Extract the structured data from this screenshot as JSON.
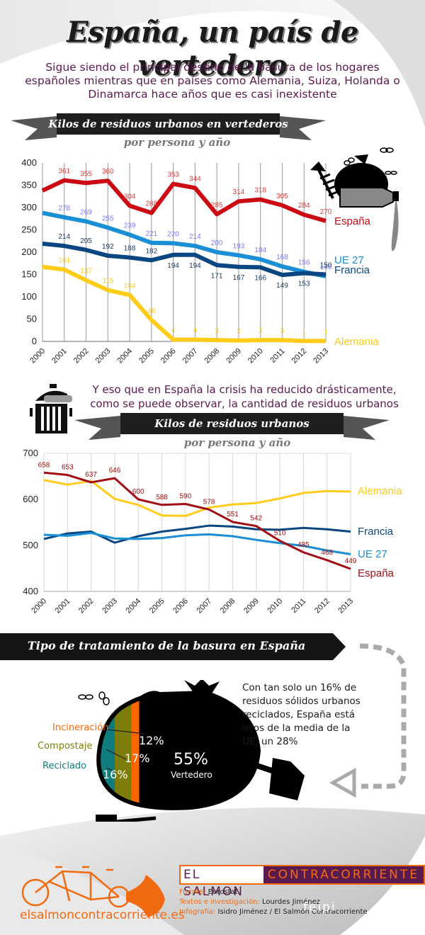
{
  "header": {
    "title": "España, un país de vertedero",
    "subtitle": "Sigue siendo el principal destino de la basura de los hogares españoles mientras que en países como Alemania, Suiza, Holanda o Dinamarca hace años que es casi inexistente"
  },
  "section1": {
    "ribbon_title": "Kilos de residuos urbanos en vertederos",
    "ribbon_sub": "por persona y año"
  },
  "section2": {
    "intro": "Y eso que en España la crisis ha reducido drásticamente, como se puede observar, la cantidad de residuos urbanos",
    "ribbon_title": "Kilos de residuos urbanos",
    "ribbon_sub": "por persona y año"
  },
  "section3": {
    "ribbon_title": "Tipo de tratamiento de la basura en España",
    "callout": "Con tan solo un 16% de residuos sólidos urbanos reciclados, España está lejos de la media de la UE, un 28%"
  },
  "colors": {
    "espana1": "#cc0a14",
    "espana2": "#a10f14",
    "francia": "#0a4682",
    "ue27": "#1a8fd6",
    "alemania": "#ffcc1a",
    "purple": "#5b1a4e",
    "orange": "#f26a10"
  },
  "chart_data": [
    {
      "type": "line",
      "title": "Kilos de residuos urbanos en vertederos por persona y año",
      "xlabel": "",
      "ylabel": "",
      "ylim": [
        0,
        400
      ],
      "yticks": [
        0,
        50,
        100,
        150,
        200,
        250,
        300,
        350,
        400
      ],
      "grid": "vertical",
      "legend": "right",
      "x": [
        "2000",
        "2001",
        "2002",
        "2003",
        "2004",
        "2005",
        "2006",
        "2007",
        "2008",
        "2009",
        "2010",
        "2011",
        "2012",
        "2013"
      ],
      "series": [
        {
          "name": "España",
          "color": "#cc0a14",
          "values": [
            338,
            361,
            355,
            360,
            304,
            288,
            353,
            344,
            285,
            314,
            318,
            305,
            284,
            270
          ],
          "labels": [
            null,
            361,
            355,
            360,
            304,
            288,
            353,
            344,
            285,
            314,
            318,
            305,
            284,
            270
          ]
        },
        {
          "name": "UE 27",
          "color": "#1a8fd6",
          "values": [
            288,
            278,
            269,
            255,
            239,
            221,
            220,
            214,
            200,
            193,
            184,
            168,
            156,
            146
          ],
          "labels": [
            null,
            278,
            269,
            255,
            239,
            221,
            220,
            214,
            200,
            193,
            184,
            168,
            156,
            146
          ]
        },
        {
          "name": "Francia",
          "color": "#0a4682",
          "values": [
            219,
            214,
            205,
            192,
            188,
            182,
            194,
            194,
            171,
            167,
            166,
            149,
            153,
            150
          ],
          "labels": [
            null,
            214,
            205,
            192,
            188,
            182,
            194,
            194,
            171,
            167,
            166,
            149,
            153,
            150
          ]
        },
        {
          "name": "Alemania",
          "color": "#ffcc1a",
          "values": [
            167,
            161,
            137,
            115,
            104,
            48,
            4,
            4,
            3,
            2,
            3,
            3,
            1,
            1
          ],
          "labels": [
            null,
            161,
            137,
            115,
            104,
            48,
            4,
            4,
            3,
            2,
            3,
            3,
            1,
            1
          ]
        }
      ]
    },
    {
      "type": "line",
      "title": "Kilos de residuos urbanos por persona y año",
      "xlabel": "",
      "ylabel": "",
      "ylim": [
        400,
        700
      ],
      "yticks": [
        400,
        500,
        600,
        700
      ],
      "grid": "vertical",
      "legend": "right",
      "x": [
        "2000",
        "2001",
        "2002",
        "2003",
        "2004",
        "2005",
        "2006",
        "2007",
        "2008",
        "2009",
        "2010",
        "2011",
        "2012",
        "2013"
      ],
      "series": [
        {
          "name": "Alemania",
          "color": "#ffcc1a",
          "values": [
            642,
            632,
            640,
            601,
            588,
            565,
            564,
            582,
            589,
            592,
            602,
            614,
            618,
            617
          ],
          "labels": []
        },
        {
          "name": "Francia",
          "color": "#0a4682",
          "values": [
            514,
            526,
            530,
            506,
            520,
            530,
            536,
            543,
            541,
            535,
            534,
            538,
            535,
            530
          ],
          "labels": []
        },
        {
          "name": "UE 27",
          "color": "#1a8fd6",
          "values": [
            523,
            521,
            527,
            515,
            514,
            516,
            522,
            524,
            520,
            512,
            505,
            499,
            489,
            481
          ],
          "labels": []
        },
        {
          "name": "España",
          "color": "#a10f14",
          "values": [
            658,
            653,
            637,
            646,
            600,
            588,
            590,
            578,
            551,
            542,
            510,
            485,
            468,
            449
          ],
          "labels": [
            658,
            653,
            637,
            646,
            600,
            588,
            590,
            578,
            551,
            542,
            510,
            485,
            468,
            449
          ]
        }
      ]
    },
    {
      "type": "bar",
      "title": "Tipo de tratamiento de la basura en España",
      "categories": [
        "Reciclado",
        "Compostaje",
        "Incineración",
        "Vertedero"
      ],
      "values": [
        16,
        17,
        12,
        55
      ],
      "unit": "%",
      "colors": [
        "#0f7c7e",
        "#7d7d0a",
        "#ff6600",
        "#000000"
      ]
    }
  ],
  "footer": {
    "brand_part1": "EL SALMON",
    "brand_part2": "CONTRACORRIENTE",
    "url": "elsalmoncontracorriente.es",
    "credits": [
      {
        "key": "Fuente:",
        "value": "Eurostat"
      },
      {
        "key": "Textos e investigación:",
        "value": "Lourdes Jiménez"
      },
      {
        "key": "Infografía:",
        "value": "Isidro Jiménez / El Salmón Contracorriente"
      }
    ],
    "watermark": "feipi"
  }
}
